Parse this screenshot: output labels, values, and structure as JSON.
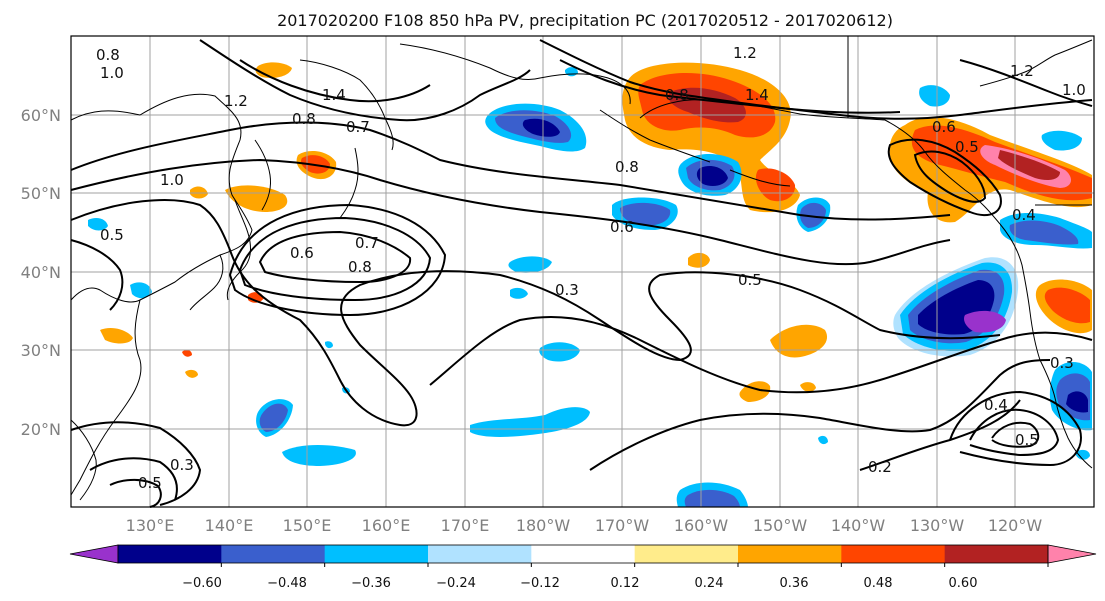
{
  "title": "2017020200 F108 850 hPa PV, precipitation PC (2017020512 - 2017020612)",
  "map": {
    "projection": "PlateCarree",
    "lon_range": [
      120,
      250
    ],
    "lat_range": [
      10,
      70
    ],
    "x_ticks": [
      "130°E",
      "140°E",
      "150°E",
      "160°E",
      "170°E",
      "180°W",
      "170°W",
      "160°W",
      "150°W",
      "140°W",
      "130°W",
      "120°W"
    ],
    "y_ticks": [
      "20°N",
      "30°N",
      "40°N",
      "50°N",
      "60°N"
    ],
    "grid": true,
    "coastline_color": "#000000"
  },
  "contours": {
    "field": "850 hPa PV",
    "labels": [
      "0.8",
      "1.0",
      "1.4",
      "1.2",
      "0.8",
      "0.7",
      "0.6",
      "0.5",
      "0.3",
      "0.8",
      "0.7",
      "0.6",
      "0.8",
      "1.0",
      "1.2",
      "1.4",
      "0.8",
      "0.6",
      "0.5",
      "0.4",
      "0.5",
      "0.4",
      "0.5",
      "0.3",
      "0.5",
      "0.3",
      "0.2",
      "1.0",
      "1.2"
    ]
  },
  "colorbar": {
    "field": "precipitation PC",
    "extend": "both",
    "tick_labels": [
      "−0.60",
      "−0.48",
      "−0.36",
      "−0.24",
      "−0.12",
      "0.12",
      "0.24",
      "0.36",
      "0.48",
      "0.60"
    ],
    "colors": [
      "#9932cc",
      "#00008b",
      "#3a5fcd",
      "#00bfff",
      "#b0e2ff",
      "#ffffff",
      "#ffec8b",
      "#ffa500",
      "#ff4500",
      "#b22222",
      "#ff82ab"
    ]
  }
}
